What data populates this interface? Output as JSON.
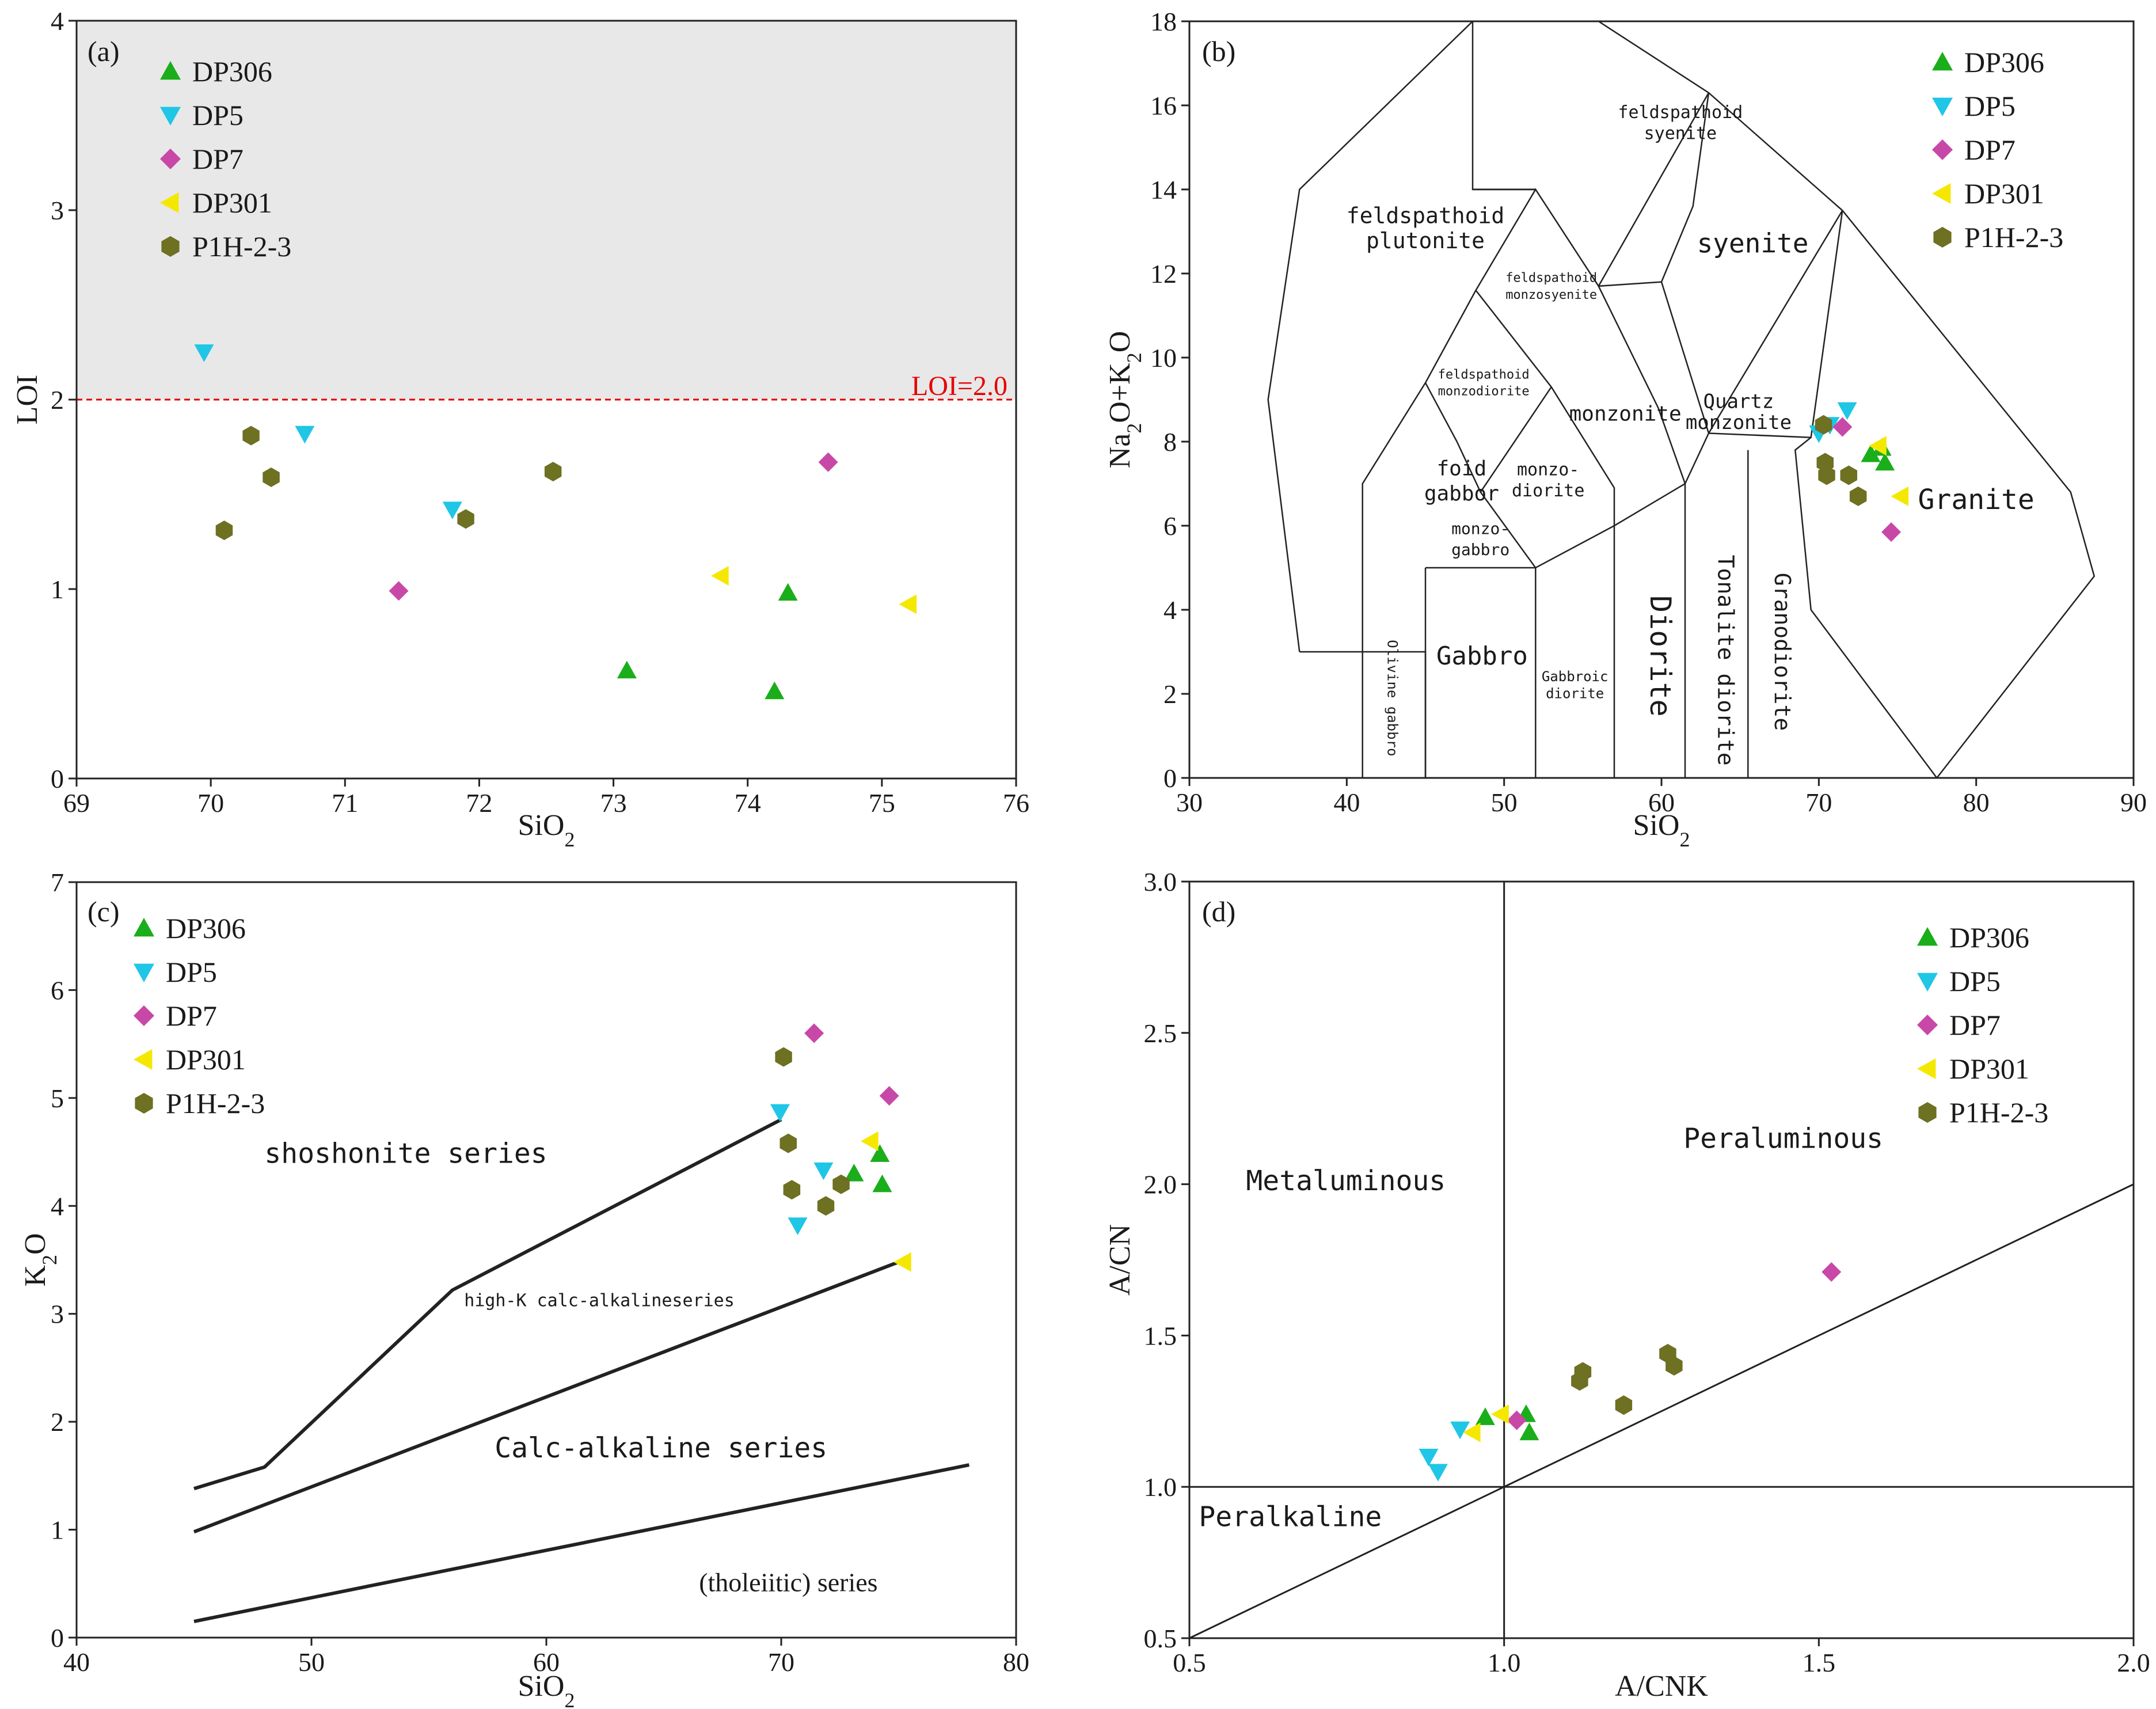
{
  "chart_data": [
    {
      "type": "scatter",
      "panel_label": "(a)",
      "xlabel": "SiO2",
      "ylabel": "LOI",
      "xlim": [
        69,
        76
      ],
      "ylim": [
        0,
        4
      ],
      "xticks": [
        69,
        70,
        71,
        72,
        73,
        74,
        75,
        76
      ],
      "yticks": [
        0,
        1,
        2,
        3,
        4
      ],
      "legend_position": "top-left",
      "threshold": {
        "label": "LOI=2.0",
        "y": 2.0,
        "shade_above": true,
        "color": "#e60000"
      },
      "series": [
        {
          "name": "DP306",
          "marker": "triangle-up",
          "color": "#1aae1a",
          "points": [
            [
              73.1,
              0.57
            ],
            [
              74.2,
              0.46
            ],
            [
              74.3,
              0.98
            ]
          ]
        },
        {
          "name": "DP5",
          "marker": "triangle-down",
          "color": "#1fc6e6",
          "points": [
            [
              69.95,
              2.25
            ],
            [
              70.7,
              1.82
            ],
            [
              71.8,
              1.42
            ]
          ]
        },
        {
          "name": "DP7",
          "marker": "diamond",
          "color": "#c848a8",
          "points": [
            [
              71.4,
              0.99
            ],
            [
              74.6,
              1.67
            ]
          ]
        },
        {
          "name": "DP301",
          "marker": "triangle-left",
          "color": "#f5e800",
          "points": [
            [
              73.8,
              1.07
            ],
            [
              75.2,
              0.92
            ]
          ]
        },
        {
          "name": "P1H-2-3",
          "marker": "hexagon",
          "color": "#6e7022",
          "points": [
            [
              70.1,
              1.31
            ],
            [
              70.3,
              1.81
            ],
            [
              70.45,
              1.59
            ],
            [
              71.9,
              1.37
            ],
            [
              72.55,
              1.62
            ]
          ]
        }
      ]
    },
    {
      "type": "scatter",
      "panel_label": "(b)",
      "xlabel": "SiO2",
      "ylabel": "Na2O+K2O",
      "xlim": [
        30,
        90
      ],
      "ylim": [
        0,
        18
      ],
      "xticks": [
        30,
        40,
        50,
        60,
        70,
        80,
        90
      ],
      "yticks": [
        0,
        2,
        4,
        6,
        8,
        10,
        12,
        14,
        16,
        18
      ],
      "legend_position": "top-right",
      "field_labels": {
        "feldspathoid_syenite": [
          "feldspathoid",
          "syenite"
        ],
        "feldspathoid_plutonite": [
          "feldspathoid",
          "plutonite"
        ],
        "feldspathoid_monzosyenite": [
          "feldspathoid",
          "monzosyenite"
        ],
        "syenite": "syenite",
        "feldspathoid_monzodiorite": [
          "feldspathoid",
          "monzodiorite"
        ],
        "monzonite": "monzonite",
        "quartz_monzonite": [
          "Quartz",
          "monzonite"
        ],
        "foid_gabbro": [
          "foid",
          "gabbor"
        ],
        "monzodiorite": [
          "monzo-",
          "diorite"
        ],
        "monzogabbro": [
          "monzo-",
          "gabbro"
        ],
        "gabbro": "Gabbro",
        "olivine_gabbro": "Olivine gabbro",
        "gabbroic_diorite": [
          "Gabbroic",
          "diorite"
        ],
        "diorite": "Diorite",
        "tonalite_diorite": "Tonalite diorite",
        "granodiorite": "Granodiorite",
        "granite": "Granite"
      },
      "series": [
        {
          "name": "DP306",
          "marker": "triangle-up",
          "color": "#1aae1a",
          "points": [
            [
              73.3,
              7.7
            ],
            [
              74.0,
              7.85
            ],
            [
              74.2,
              7.5
            ]
          ]
        },
        {
          "name": "DP5",
          "marker": "triangle-down",
          "color": "#1fc6e6",
          "points": [
            [
              70.0,
              8.2
            ],
            [
              70.7,
              8.4
            ],
            [
              71.8,
              8.75
            ]
          ]
        },
        {
          "name": "DP7",
          "marker": "diamond",
          "color": "#c848a8",
          "points": [
            [
              71.5,
              8.35
            ],
            [
              74.6,
              5.85
            ]
          ]
        },
        {
          "name": "DP301",
          "marker": "triangle-left",
          "color": "#f5e800",
          "points": [
            [
              73.8,
              7.9
            ],
            [
              75.2,
              6.7
            ]
          ]
        },
        {
          "name": "P1H-2-3",
          "marker": "hexagon",
          "color": "#6e7022",
          "points": [
            [
              70.3,
              8.4
            ],
            [
              70.4,
              7.5
            ],
            [
              70.5,
              7.2
            ],
            [
              71.9,
              7.2
            ],
            [
              72.5,
              6.7
            ]
          ]
        }
      ]
    },
    {
      "type": "scatter",
      "panel_label": "(c)",
      "xlabel": "SiO2",
      "ylabel": "K2O",
      "xlim": [
        40,
        80
      ],
      "ylim": [
        0,
        7
      ],
      "xticks": [
        40,
        50,
        60,
        70,
        80
      ],
      "yticks": [
        0,
        1,
        2,
        3,
        4,
        5,
        6,
        7
      ],
      "legend_position": "top-left",
      "field_labels": {
        "shoshonite": "shoshonite series",
        "high_k": "high-K calc-alkalineseries",
        "calc_alkaline": "Calc-alkaline series",
        "tholeiitic": "(tholeiitic) series"
      },
      "series": [
        {
          "name": "DP306",
          "marker": "triangle-up",
          "color": "#1aae1a",
          "points": [
            [
              73.1,
              4.3
            ],
            [
              74.2,
              4.48
            ],
            [
              74.3,
              4.2
            ]
          ]
        },
        {
          "name": "DP5",
          "marker": "triangle-down",
          "color": "#1fc6e6",
          "points": [
            [
              69.95,
              4.87
            ],
            [
              70.7,
              3.82
            ],
            [
              71.8,
              4.33
            ]
          ]
        },
        {
          "name": "DP7",
          "marker": "diamond",
          "color": "#c848a8",
          "points": [
            [
              71.4,
              5.6
            ],
            [
              74.6,
              5.02
            ]
          ]
        },
        {
          "name": "DP301",
          "marker": "triangle-left",
          "color": "#f5e800",
          "points": [
            [
              73.8,
              4.6
            ],
            [
              75.2,
              3.48
            ]
          ]
        },
        {
          "name": "P1H-2-3",
          "marker": "hexagon",
          "color": "#6e7022",
          "points": [
            [
              70.1,
              5.38
            ],
            [
              70.3,
              4.58
            ],
            [
              70.45,
              4.15
            ],
            [
              71.9,
              4.0
            ],
            [
              72.55,
              4.2
            ]
          ]
        }
      ]
    },
    {
      "type": "scatter",
      "panel_label": "(d)",
      "xlabel": "A/CNK",
      "ylabel": "A/CN",
      "xlim": [
        0.5,
        2.0
      ],
      "ylim": [
        0.5,
        3.0
      ],
      "xticks": [
        "0.5",
        "1.0",
        "1.5",
        "2.0"
      ],
      "yticks": [
        "0.5",
        "1.0",
        "1.5",
        "2.0",
        "2.5",
        "3.0"
      ],
      "legend_position": "top-right",
      "field_labels": {
        "metaluminous": "Metaluminous",
        "peraluminous": "Peraluminous",
        "peralkaline": "Peralkaline"
      },
      "series": [
        {
          "name": "DP306",
          "marker": "triangle-up",
          "color": "#1aae1a",
          "points": [
            [
              0.97,
              1.23
            ],
            [
              1.035,
              1.24
            ],
            [
              1.04,
              1.18
            ]
          ]
        },
        {
          "name": "DP5",
          "marker": "triangle-down",
          "color": "#1fc6e6",
          "points": [
            [
              0.88,
              1.1
            ],
            [
              0.895,
              1.05
            ],
            [
              0.93,
              1.19
            ]
          ]
        },
        {
          "name": "DP7",
          "marker": "diamond",
          "color": "#c848a8",
          "points": [
            [
              1.02,
              1.22
            ],
            [
              1.52,
              1.71
            ]
          ]
        },
        {
          "name": "DP301",
          "marker": "triangle-left",
          "color": "#f5e800",
          "points": [
            [
              0.95,
              1.18
            ],
            [
              0.995,
              1.24
            ]
          ]
        },
        {
          "name": "P1H-2-3",
          "marker": "hexagon",
          "color": "#6e7022",
          "points": [
            [
              1.12,
              1.35
            ],
            [
              1.125,
              1.38
            ],
            [
              1.19,
              1.27
            ],
            [
              1.26,
              1.44
            ],
            [
              1.27,
              1.4
            ]
          ]
        }
      ]
    }
  ]
}
